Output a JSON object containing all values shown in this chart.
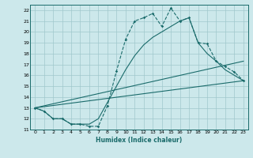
{
  "xlabel": "Humidex (Indice chaleur)",
  "xlim": [
    -0.5,
    23.5
  ],
  "ylim": [
    11,
    22.5
  ],
  "yticks": [
    11,
    12,
    13,
    14,
    15,
    16,
    17,
    18,
    19,
    20,
    21,
    22
  ],
  "xticks": [
    0,
    1,
    2,
    3,
    4,
    5,
    6,
    7,
    8,
    9,
    10,
    11,
    12,
    13,
    14,
    15,
    16,
    17,
    18,
    19,
    20,
    21,
    22,
    23
  ],
  "bg_color": "#cce8eb",
  "grid_color": "#a0c8cc",
  "line_color": "#1a6b6b",
  "line1_x": [
    0,
    1,
    2,
    3,
    4,
    5,
    6,
    7,
    8,
    9,
    10,
    11,
    12,
    13,
    14,
    15,
    16,
    17,
    18,
    19,
    20,
    21,
    22,
    23
  ],
  "line1_y": [
    13.0,
    12.7,
    12.0,
    12.0,
    11.5,
    11.5,
    11.3,
    11.3,
    13.2,
    16.4,
    19.3,
    21.0,
    21.3,
    21.7,
    20.5,
    22.2,
    21.0,
    21.3,
    19.0,
    18.9,
    17.3,
    16.8,
    16.3,
    15.5
  ],
  "line2_x": [
    0,
    1,
    2,
    3,
    4,
    5,
    6,
    7,
    8,
    9,
    10,
    11,
    12,
    13,
    14,
    15,
    16,
    17,
    18,
    19,
    20,
    21,
    22,
    23
  ],
  "line2_y": [
    13.0,
    12.7,
    12.0,
    12.0,
    11.5,
    11.5,
    11.5,
    12.0,
    13.5,
    15.0,
    16.5,
    17.8,
    18.8,
    19.5,
    20.0,
    20.5,
    21.0,
    21.3,
    19.0,
    18.0,
    17.3,
    16.5,
    16.0,
    15.5
  ],
  "line3_x": [
    0,
    23
  ],
  "line3_y": [
    13.0,
    17.3
  ],
  "line4_x": [
    0,
    23
  ],
  "line4_y": [
    13.0,
    15.5
  ]
}
